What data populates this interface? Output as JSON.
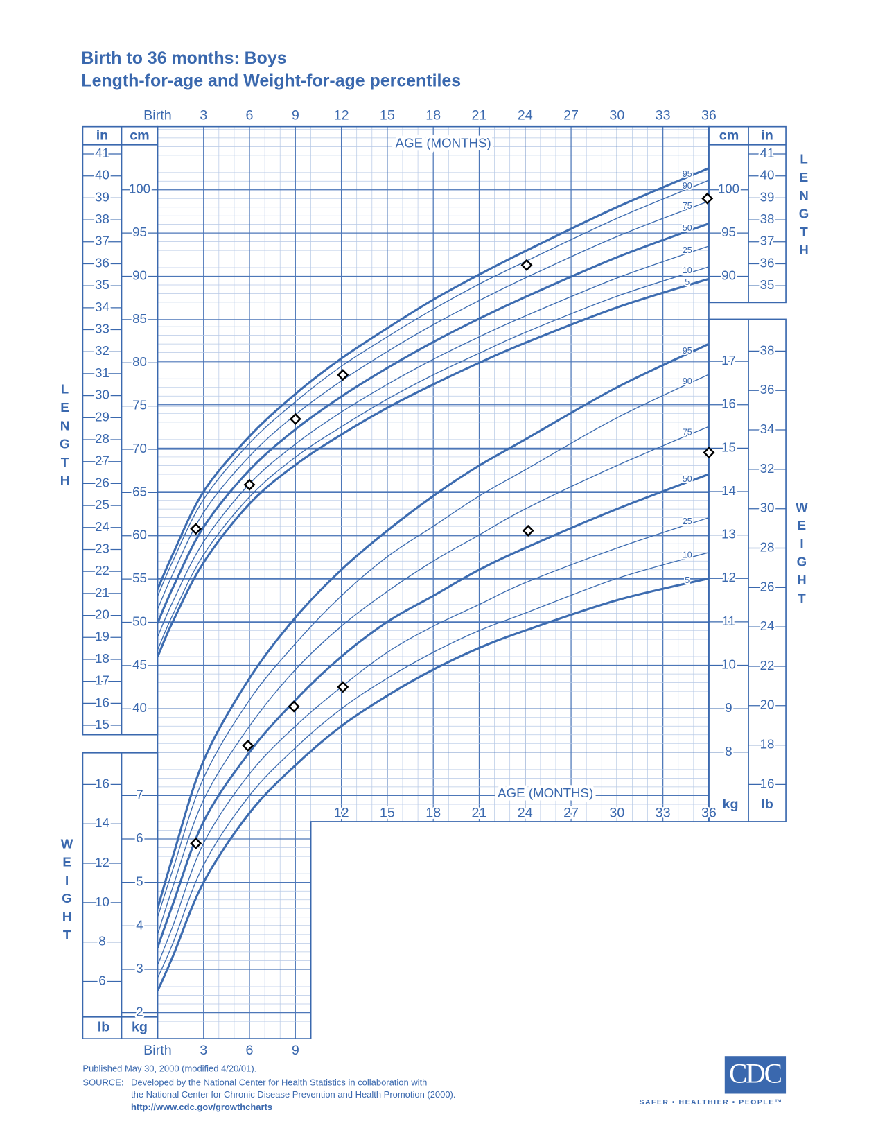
{
  "title": "Birth to 36 months: Boys",
  "subtitle": "Length-for-age and Weight-for-age percentiles",
  "chart_data": [
    {
      "type": "line",
      "x_label": "AGE (MONTHS)",
      "y_label": "LENGTH",
      "y_unit": "cm",
      "y2_unit": "in",
      "x": [
        0,
        1,
        3,
        6,
        9,
        12,
        15,
        18,
        21,
        24,
        30,
        36
      ],
      "xlim": [
        0,
        36
      ],
      "xticks": [
        {
          "value": 0,
          "label": "Birth"
        },
        3,
        6,
        9,
        12,
        15,
        18,
        21,
        24,
        27,
        30,
        33,
        36
      ],
      "ylim": [
        37,
        107.3
      ],
      "yticks": [
        40,
        45,
        50,
        55,
        60,
        65,
        70,
        75,
        80,
        85,
        90,
        95,
        100
      ],
      "y2lim": [
        14.57,
        42.24
      ],
      "y2ticks": [
        15,
        16,
        17,
        18,
        19,
        20,
        21,
        22,
        23,
        24,
        25,
        26,
        27,
        28,
        29,
        30,
        31,
        32,
        33,
        34,
        35,
        36,
        37,
        38,
        39,
        40,
        41
      ],
      "grid": true,
      "series": [
        {
          "name": "95",
          "color": "#3d6cb0",
          "line_width": 3,
          "values": [
            53.8,
            57.9,
            65.1,
            71.5,
            76.4,
            80.5,
            84.0,
            87.3,
            90.2,
            92.9,
            98.0,
            102.5
          ]
        },
        {
          "name": "90",
          "color": "#3d6cb0",
          "line_width": 1.3,
          "values": [
            53.0,
            57.1,
            64.2,
            70.7,
            75.5,
            79.6,
            83.0,
            86.2,
            89.1,
            91.7,
            96.7,
            101.1
          ]
        },
        {
          "name": "75",
          "color": "#3d6cb0",
          "line_width": 1.3,
          "values": [
            51.5,
            55.6,
            62.7,
            69.2,
            74.0,
            77.9,
            81.3,
            84.4,
            87.2,
            89.8,
            94.6,
            98.7
          ]
        },
        {
          "name": "50",
          "color": "#3d6cb0",
          "line_width": 3,
          "values": [
            49.9,
            54.0,
            61.0,
            67.6,
            72.3,
            76.1,
            79.4,
            82.4,
            85.1,
            87.6,
            92.2,
            96.1
          ]
        },
        {
          "name": "25",
          "color": "#3d6cb0",
          "line_width": 1.3,
          "values": [
            48.3,
            52.4,
            59.3,
            66.0,
            70.6,
            74.3,
            77.5,
            80.4,
            83.0,
            85.4,
            89.8,
            93.5
          ]
        },
        {
          "name": "10",
          "color": "#3d6cb0",
          "line_width": 1.3,
          "values": [
            46.8,
            50.9,
            57.8,
            64.5,
            69.1,
            72.6,
            75.8,
            78.6,
            81.1,
            83.5,
            87.7,
            91.1
          ]
        },
        {
          "name": "5",
          "color": "#3d6cb0",
          "line_width": 3,
          "values": [
            46.0,
            50.1,
            56.9,
            63.7,
            68.2,
            71.7,
            74.8,
            77.5,
            80.0,
            82.3,
            86.4,
            89.7
          ]
        },
        {
          "type": "scatter",
          "color": "#000000",
          "x": [
            2.5,
            6.0,
            9.0,
            12.1,
            24.1,
            35.9
          ],
          "values": [
            60.8,
            65.9,
            73.5,
            78.6,
            91.3,
            99.0
          ]
        }
      ]
    },
    {
      "type": "line",
      "x_label": "AGE (MONTHS)",
      "y_label": "WEIGHT",
      "y_unit": "kg",
      "y2_unit": "lb",
      "x": [
        0,
        1,
        3,
        6,
        9,
        12,
        15,
        18,
        21,
        24,
        30,
        36
      ],
      "xlim": [
        0,
        36
      ],
      "xticks": [
        {
          "value": 0,
          "label": "Birth"
        },
        3,
        6,
        9,
        12,
        15,
        18,
        21,
        24,
        27,
        30,
        33,
        36
      ],
      "ylim": [
        1.4,
        17.97
      ],
      "yticks": [
        2,
        3,
        4,
        5,
        6,
        7,
        8,
        9,
        10,
        11,
        12,
        13,
        14,
        15,
        16,
        17
      ],
      "y2lim": [
        3.09,
        39.62
      ],
      "y2ticks": [
        6,
        8,
        10,
        12,
        14,
        16,
        18,
        20,
        22,
        24,
        26,
        28,
        30,
        32,
        34,
        36,
        38
      ],
      "grid": true,
      "series": [
        {
          "name": "95",
          "color": "#3d6cb0",
          "line_width": 3,
          "values": [
            4.4,
            5.6,
            7.8,
            9.7,
            11.1,
            12.2,
            13.1,
            13.9,
            14.6,
            15.2,
            16.4,
            17.4
          ]
        },
        {
          "name": "90",
          "color": "#3d6cb0",
          "line_width": 1.3,
          "values": [
            4.2,
            5.3,
            7.4,
            9.2,
            10.5,
            11.6,
            12.5,
            13.2,
            13.9,
            14.5,
            15.7,
            16.7
          ]
        },
        {
          "name": "75",
          "color": "#3d6cb0",
          "line_width": 1.3,
          "values": [
            3.8,
            4.9,
            6.9,
            8.6,
            9.9,
            10.9,
            11.7,
            12.4,
            13.0,
            13.6,
            14.6,
            15.5
          ]
        },
        {
          "name": "50",
          "color": "#3d6cb0",
          "line_width": 3,
          "values": [
            3.5,
            4.5,
            6.4,
            8.0,
            9.2,
            10.2,
            11.0,
            11.6,
            12.2,
            12.7,
            13.6,
            14.4
          ]
        },
        {
          "name": "25",
          "color": "#3d6cb0",
          "line_width": 1.3,
          "values": [
            3.1,
            4.0,
            5.9,
            7.5,
            8.6,
            9.5,
            10.3,
            10.9,
            11.4,
            11.9,
            12.7,
            13.4
          ]
        },
        {
          "name": "10",
          "color": "#3d6cb0",
          "line_width": 1.3,
          "values": [
            2.8,
            3.6,
            5.4,
            7.0,
            8.1,
            9.0,
            9.7,
            10.3,
            10.8,
            11.2,
            12.0,
            12.6
          ]
        },
        {
          "name": "5",
          "color": "#3d6cb0",
          "line_width": 3,
          "values": [
            2.5,
            3.3,
            5.0,
            6.6,
            7.7,
            8.6,
            9.3,
            9.9,
            10.4,
            10.8,
            11.5,
            12.0
          ]
        },
        {
          "type": "scatter",
          "color": "#000000",
          "x": [
            2.5,
            5.9,
            8.9,
            12.1,
            24.2,
            36.0
          ],
          "values": [
            5.9,
            8.15,
            9.05,
            9.5,
            13.1,
            14.9
          ]
        }
      ]
    }
  ],
  "footer": {
    "published": "Published May 30, 2000 (modified 4/20/01).",
    "source_label": "SOURCE:",
    "source_lines": [
      "Developed by the National Center for Health Statistics in collaboration with",
      "the National Center for Chronic Disease Prevention and Health Promotion (2000)."
    ],
    "url": "http://www.cdc.gov/growthcharts"
  },
  "logo": {
    "text": "CDC",
    "tagline": "SAFER • HEALTHIER • PEOPLE™"
  }
}
